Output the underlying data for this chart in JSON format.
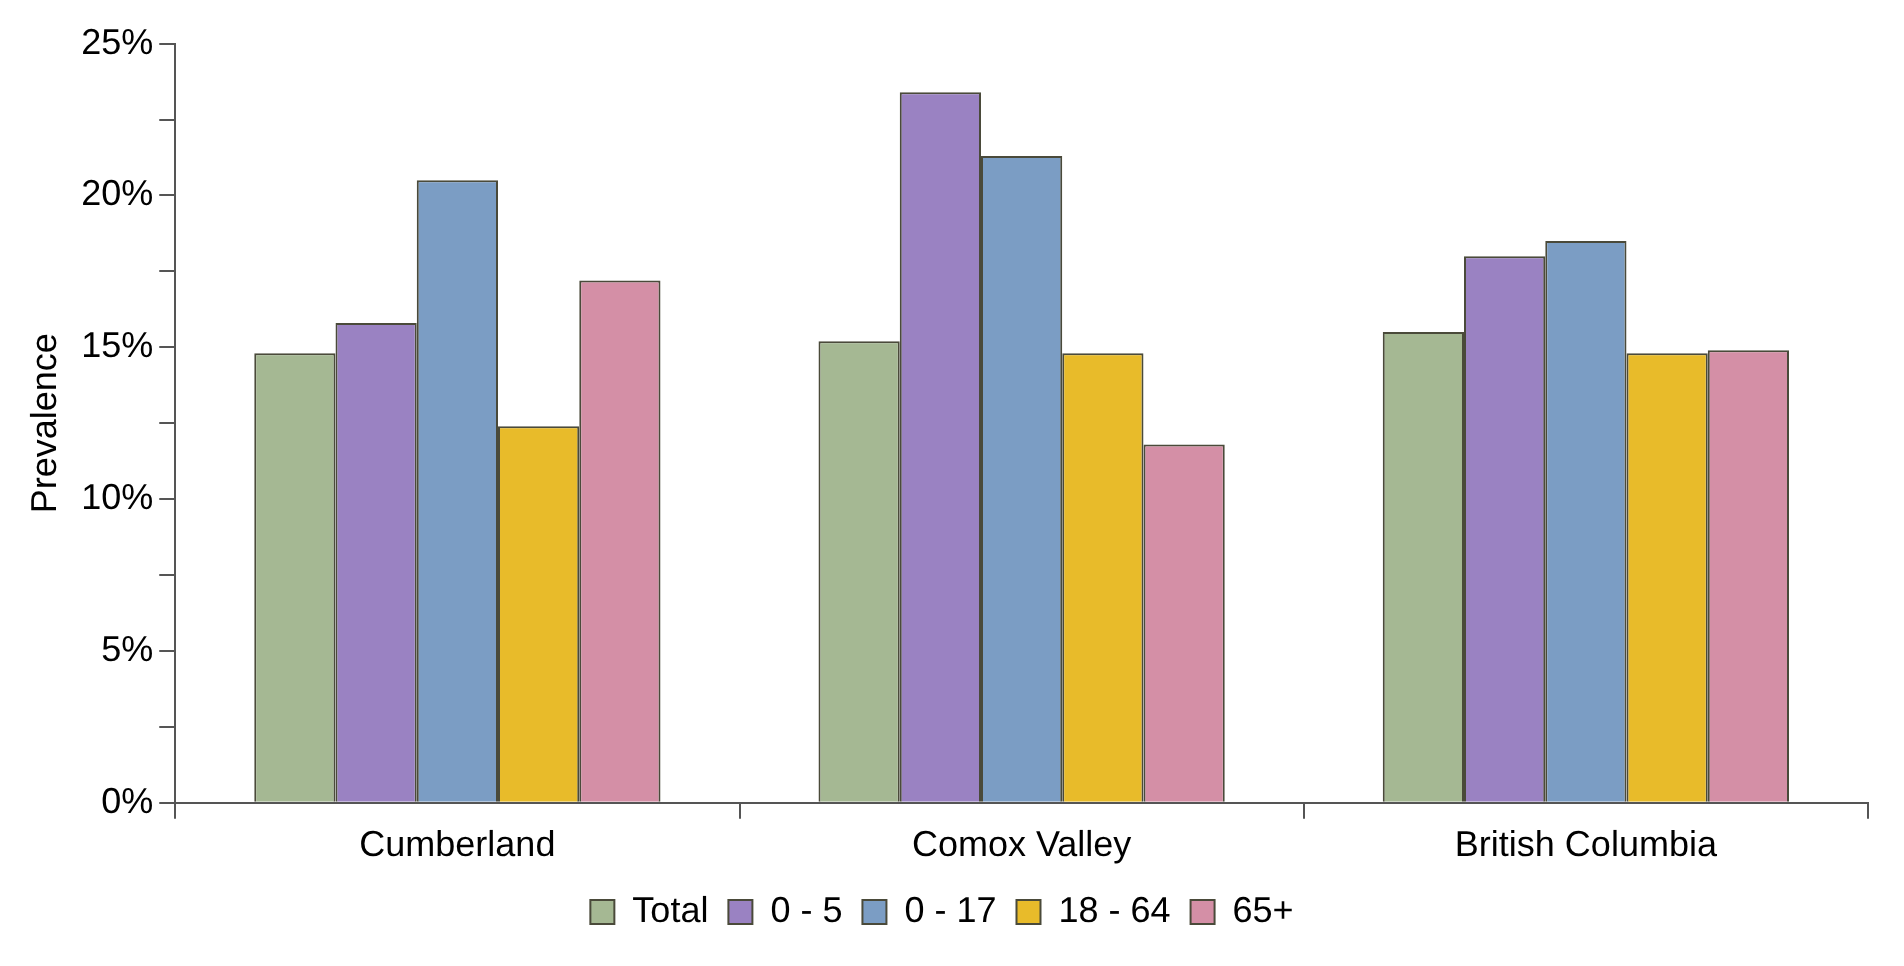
{
  "chart_data": {
    "type": "bar",
    "ylabel": "Prevalence",
    "categories": [
      "Cumberland",
      "Comox Valley",
      "British Columbia"
    ],
    "series": [
      {
        "name": "Total",
        "color": "#a5b893",
        "values": [
          14.8,
          15.2,
          15.5
        ]
      },
      {
        "name": "0 - 5",
        "color": "#9a82c2",
        "values": [
          15.8,
          23.4,
          18.0
        ]
      },
      {
        "name": "0 - 17",
        "color": "#7b9dc4",
        "values": [
          20.5,
          21.3,
          18.5
        ]
      },
      {
        "name": "18 - 64",
        "color": "#e8bb2a",
        "values": [
          12.4,
          14.8,
          14.8
        ]
      },
      {
        "name": "65+",
        "color": "#d48fa6",
        "values": [
          17.2,
          11.8,
          14.9
        ]
      }
    ],
    "ylim": [
      0,
      25
    ],
    "yticks": [
      {
        "value": 0,
        "label": "0%"
      },
      {
        "value": 2.5,
        "label": null
      },
      {
        "value": 5,
        "label": "5%"
      },
      {
        "value": 7.5,
        "label": null
      },
      {
        "value": 10,
        "label": "10%"
      },
      {
        "value": 12.5,
        "label": null
      },
      {
        "value": 15,
        "label": "15%"
      },
      {
        "value": 17.5,
        "label": null
      },
      {
        "value": 20,
        "label": "20%"
      },
      {
        "value": 22.5,
        "label": null
      },
      {
        "value": 25,
        "label": "25%"
      }
    ],
    "grid": false,
    "legend": "bottom"
  }
}
